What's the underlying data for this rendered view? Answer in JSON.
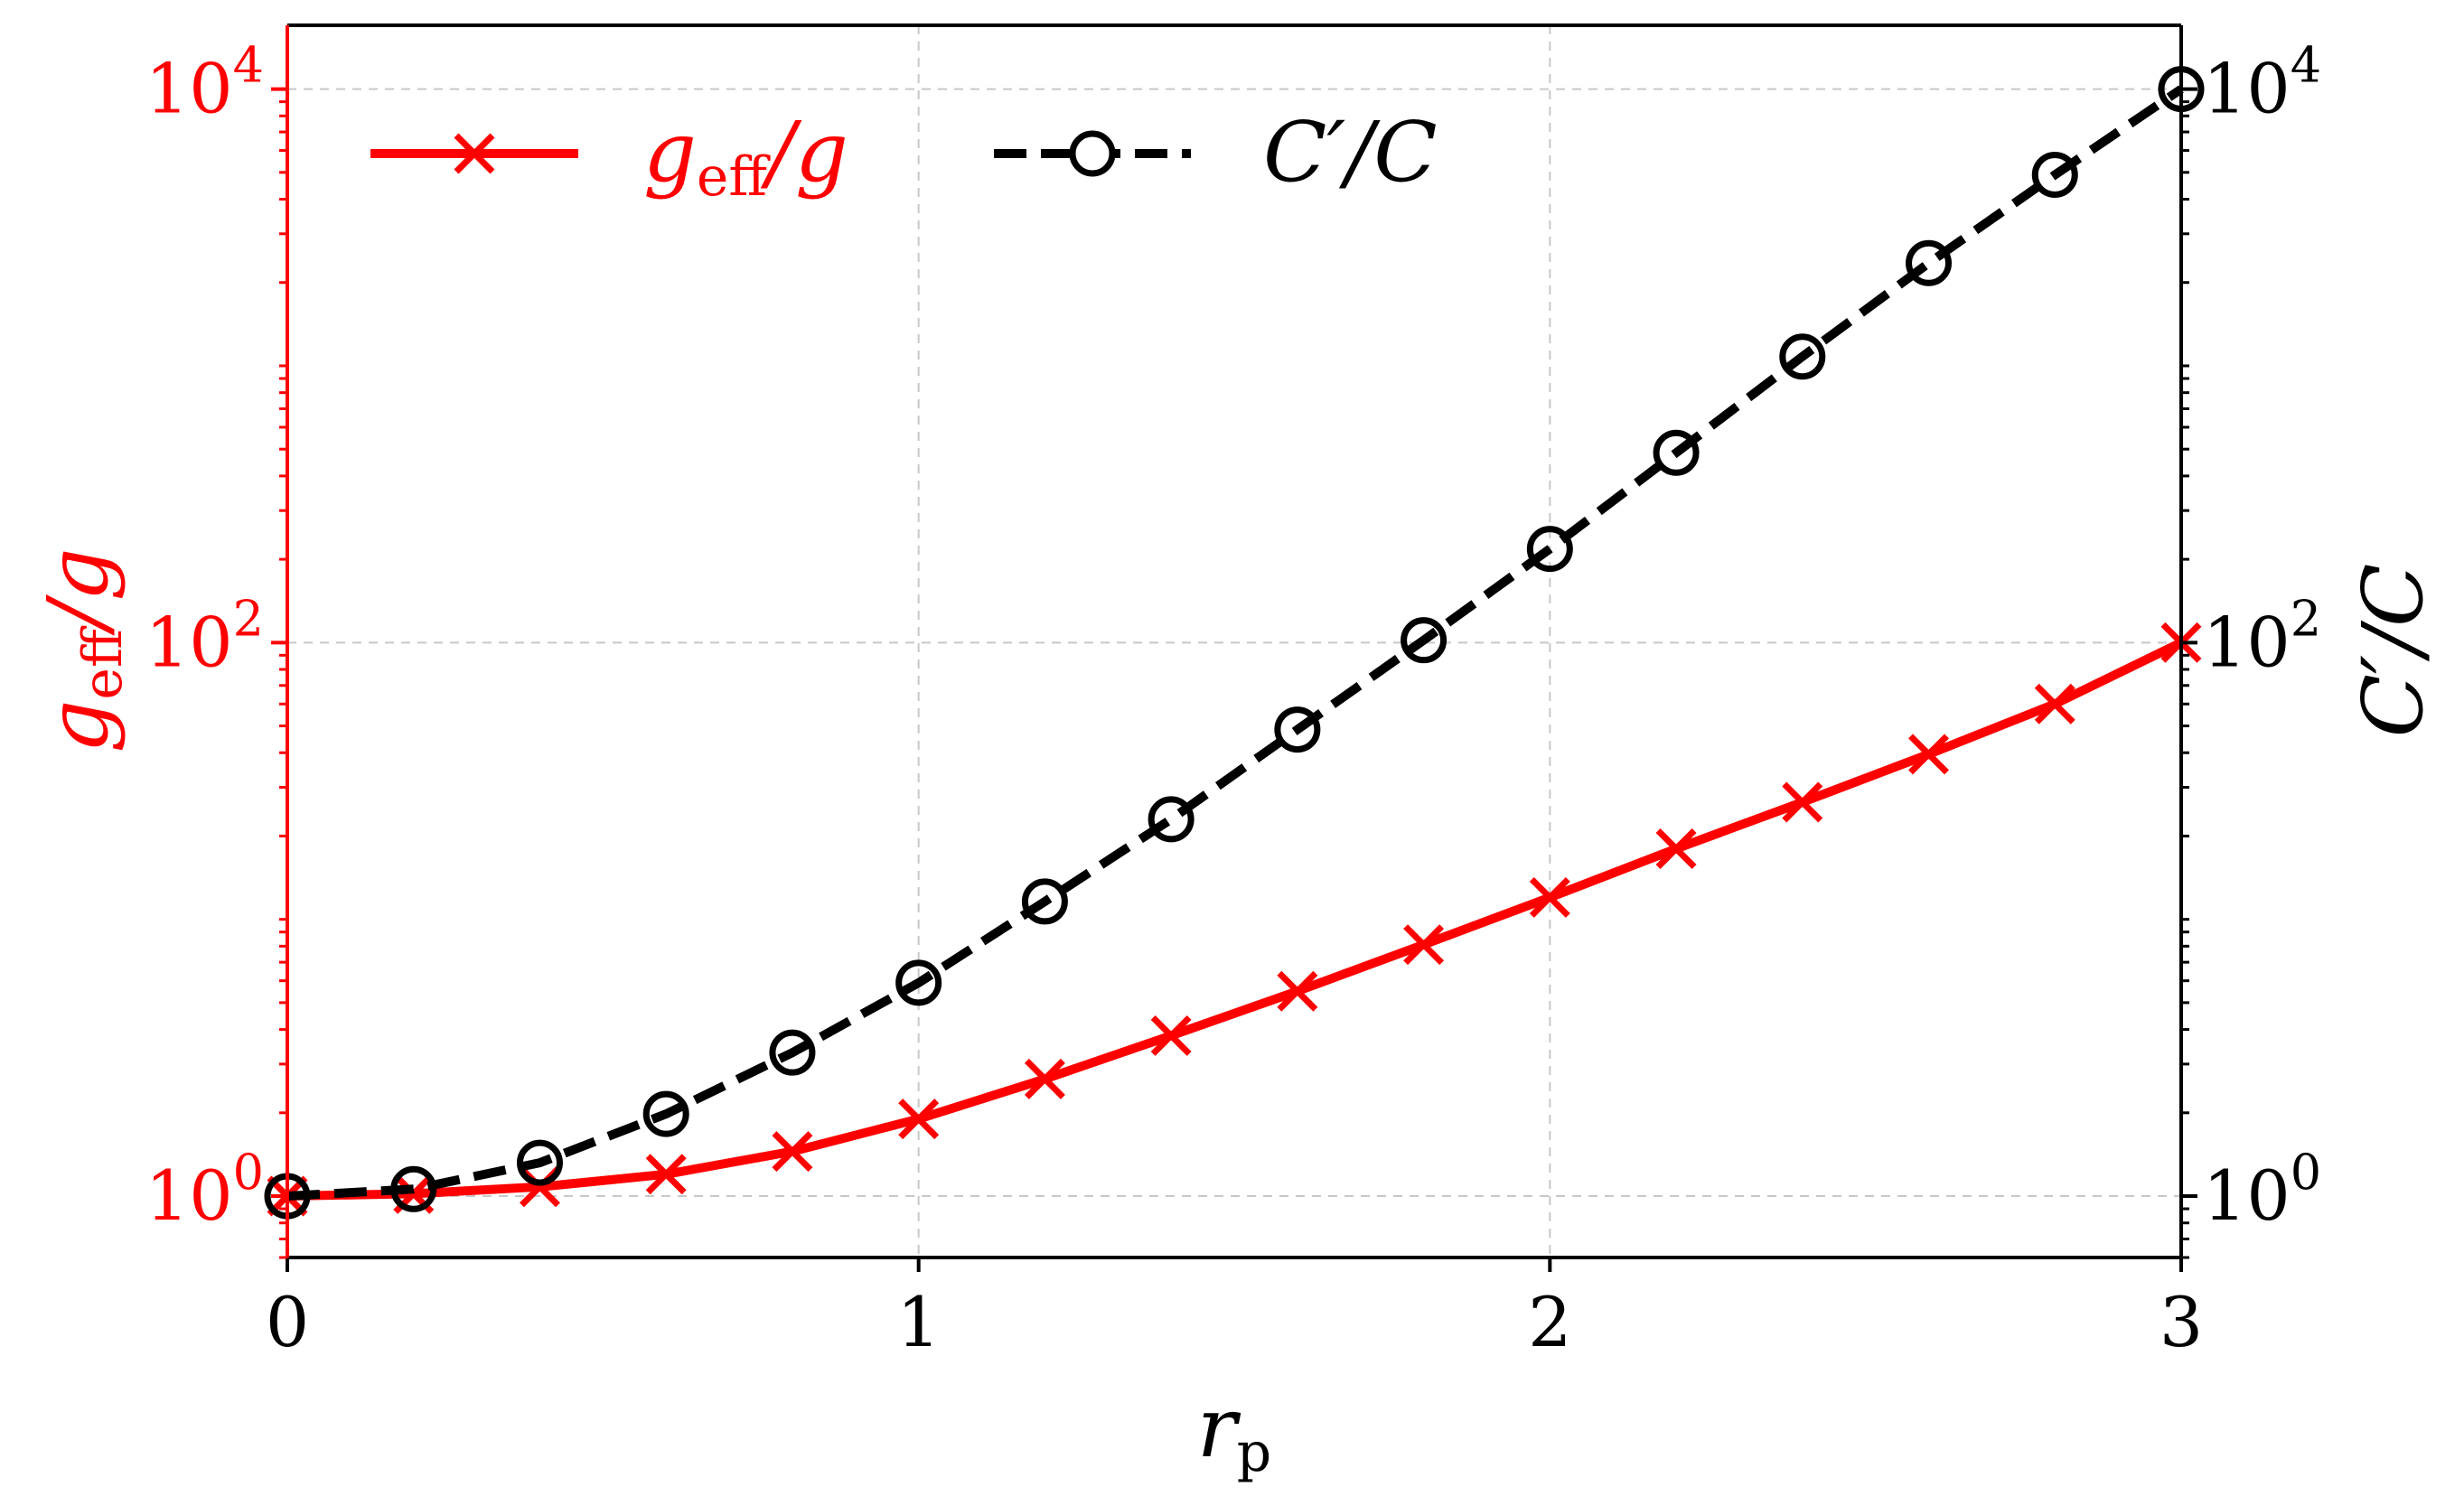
{
  "chart_data": {
    "type": "line",
    "xlabel": "r_p",
    "ylabel_left": "g_eff/g",
    "ylabel_right": "C′/C",
    "xlim": [
      0,
      3
    ],
    "ylim_left": [
      0.6,
      17000
    ],
    "ylim_right": [
      0.6,
      17000
    ],
    "yscale": "log",
    "grid": true,
    "legend_position": "top-left",
    "x_ticks": [
      {
        "value": 0,
        "label": "0"
      },
      {
        "value": 1,
        "label": "1"
      },
      {
        "value": 2,
        "label": "2"
      },
      {
        "value": 3,
        "label": "3"
      }
    ],
    "y_ticks_left": [
      {
        "value": 1,
        "base": "10",
        "exp": "0"
      },
      {
        "value": 100,
        "base": "10",
        "exp": "2"
      },
      {
        "value": 10000,
        "base": "10",
        "exp": "4"
      }
    ],
    "y_ticks_right": [
      {
        "value": 1,
        "base": "10",
        "exp": "0"
      },
      {
        "value": 100,
        "base": "10",
        "exp": "2"
      },
      {
        "value": 10000,
        "base": "10",
        "exp": "4"
      }
    ],
    "series": [
      {
        "name": "g_eff/g",
        "axis": "left",
        "color": "#ff0000",
        "line_style": "solid",
        "marker": "x",
        "x": [
          0,
          0.2,
          0.4,
          0.6,
          0.8,
          1.0,
          1.2,
          1.4,
          1.6,
          1.8,
          2.0,
          2.2,
          2.4,
          2.6,
          2.8,
          3.0
        ],
        "y": [
          1.0,
          1.02,
          1.08,
          1.2,
          1.45,
          1.9,
          2.65,
          3.8,
          5.5,
          8.1,
          12.0,
          18.0,
          26.5,
          39.5,
          60.0,
          100.0
        ]
      },
      {
        "name": "C′/C",
        "axis": "right",
        "color": "#000000",
        "line_style": "dashed",
        "marker": "o",
        "x": [
          0,
          0.2,
          0.4,
          0.6,
          0.8,
          1.0,
          1.2,
          1.4,
          1.6,
          1.8,
          2.0,
          2.2,
          2.4,
          2.6,
          2.8,
          3.0
        ],
        "y": [
          1.0,
          1.06,
          1.32,
          1.98,
          3.3,
          5.9,
          11.6,
          23.0,
          48.5,
          102.0,
          218.0,
          485.0,
          1080.0,
          2350.0,
          4900.0,
          10000.0
        ]
      }
    ]
  },
  "colors": {
    "accent_left": "#ff0000",
    "accent_right": "#000000",
    "grid": "#c8c8c8"
  }
}
